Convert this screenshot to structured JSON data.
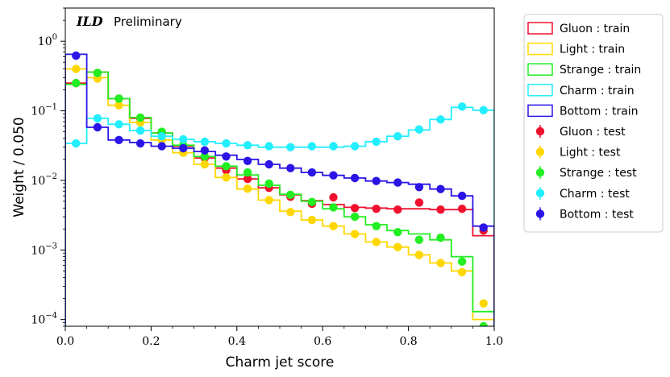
{
  "chart_data": {
    "type": "line",
    "title": "",
    "annotation": {
      "experiment": "ILD",
      "status": "Preliminary"
    },
    "xlabel": "Charm jet score",
    "ylabel": "Weight / 0.050",
    "xlim": [
      0,
      1
    ],
    "ylim": [
      8e-05,
      3
    ],
    "yscale": "log",
    "x_ticks": [
      0,
      0.2,
      0.4,
      0.6,
      0.8,
      1.0
    ],
    "x_tick_labels": [
      "0.0",
      "0.2",
      "0.4",
      "0.6",
      "0.8",
      "1.0"
    ],
    "y_ticks": [
      {
        "value": 0.0001,
        "base": "10",
        "exp": "−4"
      },
      {
        "value": 0.001,
        "base": "10",
        "exp": "−3"
      },
      {
        "value": 0.01,
        "base": "10",
        "exp": "−2"
      },
      {
        "value": 0.1,
        "base": "10",
        "exp": "−1"
      },
      {
        "value": 1,
        "base": "10",
        "exp": "0"
      }
    ],
    "bin_edges": [
      0,
      0.05,
      0.1,
      0.15,
      0.2,
      0.25,
      0.3,
      0.35,
      0.4,
      0.45,
      0.5,
      0.55,
      0.6,
      0.65,
      0.7,
      0.75,
      0.8,
      0.85,
      0.9,
      0.95,
      1.0
    ],
    "bin_centers": [
      0.025,
      0.075,
      0.125,
      0.175,
      0.225,
      0.275,
      0.325,
      0.375,
      0.425,
      0.475,
      0.525,
      0.575,
      0.625,
      0.675,
      0.725,
      0.775,
      0.825,
      0.875,
      0.925,
      0.975
    ],
    "series": [
      {
        "name": "Gluon : train",
        "kind": "train",
        "color": "#f0102e",
        "values": [
          0.25,
          0.36,
          0.15,
          0.078,
          0.048,
          0.031,
          0.021,
          0.015,
          0.0105,
          0.0078,
          0.0062,
          0.0051,
          0.0045,
          0.0041,
          0.004,
          0.0039,
          0.0039,
          0.0038,
          0.0038,
          0.0016
        ]
      },
      {
        "name": "Light : train",
        "kind": "train",
        "color": "#ffd700",
        "values": [
          0.4,
          0.3,
          0.12,
          0.068,
          0.038,
          0.025,
          0.017,
          0.011,
          0.0075,
          0.0052,
          0.0036,
          0.0027,
          0.0022,
          0.0017,
          0.0013,
          0.0011,
          0.00085,
          0.00065,
          0.0005,
          0.0001
        ]
      },
      {
        "name": "Strange : train",
        "kind": "train",
        "color": "#22ee22",
        "values": [
          0.24,
          0.36,
          0.15,
          0.08,
          0.048,
          0.032,
          0.022,
          0.016,
          0.012,
          0.0085,
          0.0063,
          0.005,
          0.0039,
          0.003,
          0.0023,
          0.0019,
          0.0017,
          0.0014,
          0.0008,
          0.00013
        ]
      },
      {
        "name": "Charm : train",
        "kind": "train",
        "color": "#22eeff",
        "values": [
          0.034,
          0.078,
          0.064,
          0.052,
          0.043,
          0.039,
          0.036,
          0.034,
          0.032,
          0.03,
          0.03,
          0.03,
          0.03,
          0.031,
          0.036,
          0.043,
          0.053,
          0.075,
          0.112,
          0.102
        ]
      },
      {
        "name": "Bottom : train",
        "kind": "train",
        "color": "#2a14e6",
        "values": [
          0.65,
          0.058,
          0.038,
          0.035,
          0.031,
          0.029,
          0.026,
          0.023,
          0.02,
          0.017,
          0.015,
          0.013,
          0.0118,
          0.0108,
          0.0098,
          0.0093,
          0.0088,
          0.0075,
          0.006,
          0.0022
        ]
      },
      {
        "name": "Gluon : test",
        "kind": "test",
        "color": "#f0102e",
        "values": [
          0.25,
          0.35,
          0.15,
          0.078,
          0.048,
          0.031,
          0.021,
          0.014,
          0.0105,
          0.0078,
          0.0058,
          0.0046,
          0.0057,
          0.004,
          0.0039,
          0.0038,
          0.0048,
          0.0038,
          0.0039,
          0.0019
        ]
      },
      {
        "name": "Light : test",
        "kind": "test",
        "color": "#ffd700",
        "values": [
          0.4,
          0.29,
          0.12,
          0.068,
          0.038,
          0.025,
          0.017,
          0.011,
          0.0076,
          0.0052,
          0.0035,
          0.0027,
          0.0022,
          0.0017,
          0.0013,
          0.0011,
          0.00085,
          0.00065,
          0.00048,
          0.00017
        ]
      },
      {
        "name": "Strange : test",
        "kind": "test",
        "color": "#22ee22",
        "values": [
          0.25,
          0.35,
          0.15,
          0.08,
          0.05,
          0.032,
          0.022,
          0.016,
          0.013,
          0.009,
          0.0062,
          0.0049,
          0.0041,
          0.003,
          0.0022,
          0.0018,
          0.0014,
          0.0015,
          0.00068,
          8e-05
        ]
      },
      {
        "name": "Charm : test",
        "kind": "test",
        "color": "#22eeff",
        "values": [
          0.034,
          0.078,
          0.064,
          0.052,
          0.043,
          0.039,
          0.036,
          0.034,
          0.032,
          0.031,
          0.03,
          0.031,
          0.031,
          0.031,
          0.036,
          0.043,
          0.054,
          0.075,
          0.115,
          0.102
        ]
      },
      {
        "name": "Bottom : test",
        "kind": "test",
        "color": "#2a14e6",
        "values": [
          0.62,
          0.058,
          0.038,
          0.034,
          0.031,
          0.029,
          0.027,
          0.022,
          0.019,
          0.017,
          0.015,
          0.013,
          0.0118,
          0.0108,
          0.0098,
          0.0093,
          0.008,
          0.0075,
          0.006,
          0.0021
        ]
      }
    ],
    "legend_position": "outside-right"
  }
}
